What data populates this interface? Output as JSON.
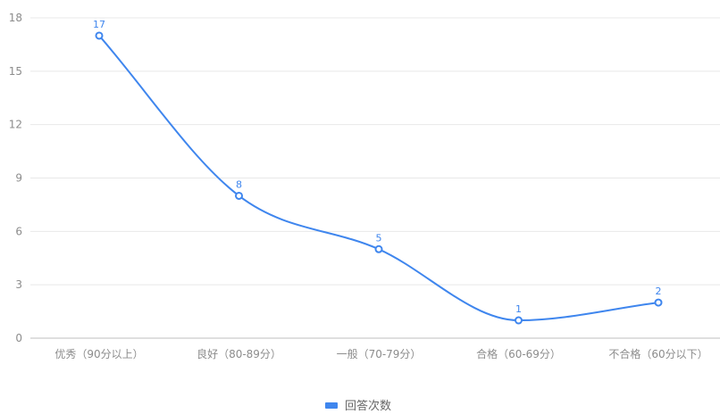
{
  "chart_data": {
    "type": "line",
    "smooth": true,
    "categories": [
      "优秀（90分以上）",
      "良好（80-89分）",
      "一般（70-79分）",
      "合格（60-69分）",
      "不合格（60分以下）"
    ],
    "series": [
      {
        "name": "回答次数",
        "values": [
          17,
          8,
          5,
          1,
          2
        ],
        "color": "#3f86ee"
      }
    ],
    "data_labels": [
      "17",
      "8",
      "5",
      "1",
      "2"
    ],
    "yticks": [
      0,
      3,
      6,
      9,
      12,
      15,
      18
    ],
    "ytick_labels": [
      "0",
      "3",
      "6",
      "9",
      "12",
      "15",
      "18"
    ],
    "ylim": [
      0,
      18
    ],
    "grid": true,
    "legend": {
      "position": "bottom-center",
      "label": "回答次数"
    },
    "title": "",
    "xlabel": "",
    "ylabel": ""
  }
}
